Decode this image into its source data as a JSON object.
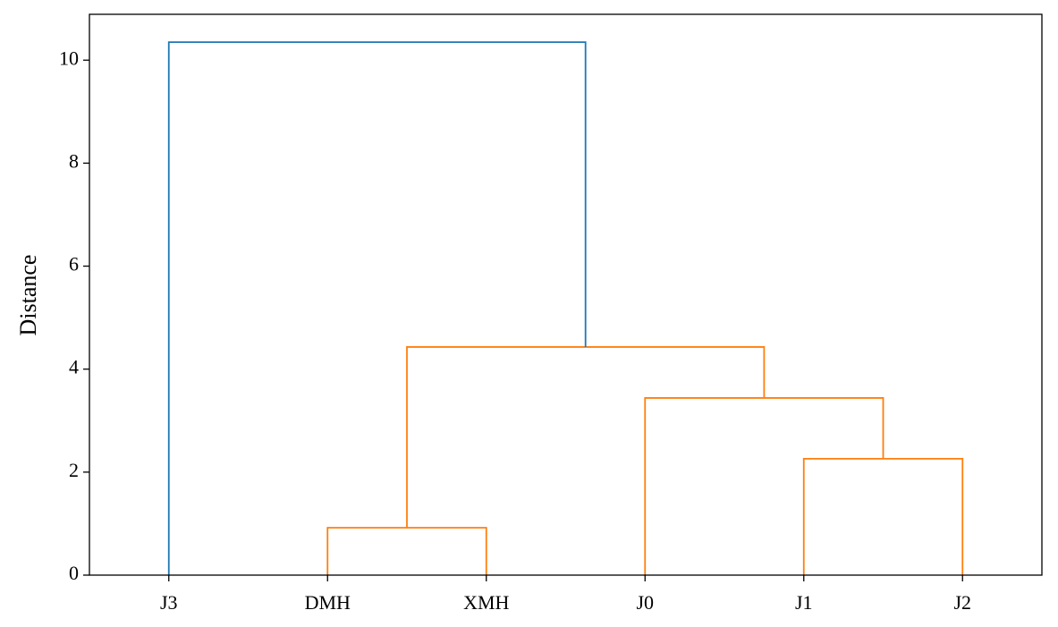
{
  "chart_data": {
    "type": "dendrogram",
    "ylabel": "Distance",
    "categories": [
      "J3",
      "DMH",
      "XMH",
      "J0",
      "J1",
      "J2"
    ],
    "merges": [
      {
        "children": [
          1,
          2
        ],
        "height": 0.92,
        "color": "#ff7f0e"
      },
      {
        "children": [
          4,
          5
        ],
        "height": 2.26,
        "color": "#ff7f0e"
      },
      {
        "children": [
          3,
          7
        ],
        "height": 3.44,
        "color": "#ff7f0e"
      },
      {
        "children": [
          6,
          8
        ],
        "height": 4.43,
        "color": "#ff7f0e"
      },
      {
        "children": [
          0,
          9
        ],
        "height": 10.35,
        "color": "#1f77b4"
      }
    ],
    "ylim": [
      0,
      10.89
    ],
    "yticks": [
      0,
      2,
      4,
      6,
      8,
      10
    ]
  }
}
